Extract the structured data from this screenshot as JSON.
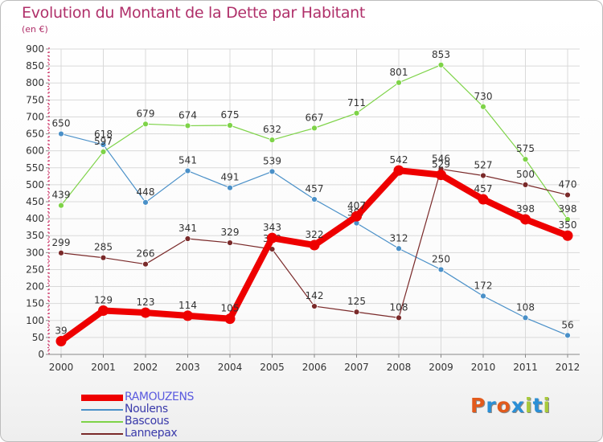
{
  "header": {
    "title": "Evolution du Montant de la Dette par Habitant",
    "subtitle": "(en €)"
  },
  "colors": {
    "title": "#b0306a",
    "axis": "#cc3366",
    "grid": "#d9d9d9"
  },
  "logo": {
    "letters": [
      "P",
      "r",
      "o",
      "x",
      "i",
      "t",
      "i"
    ],
    "colors": [
      "#e25a1c",
      "#2a8fd6",
      "#e25a1c",
      "#2a8fd6",
      "#a8c93a",
      "#2a8fd6",
      "#a8c93a"
    ]
  },
  "chart_data": {
    "type": "line",
    "title": "Evolution du Montant de la Dette par Habitant",
    "subtitle": "(en €)",
    "x": [
      "2000",
      "2001",
      "2002",
      "2003",
      "2004",
      "2005",
      "2006",
      "2007",
      "2008",
      "2009",
      "2010",
      "2011",
      "2012"
    ],
    "yticks": [
      "0",
      "50",
      "100",
      "150",
      "200",
      "250",
      "300",
      "350",
      "400",
      "450",
      "500",
      "550",
      "600",
      "650",
      "700",
      "750",
      "800",
      "850",
      "900"
    ],
    "ylim": [
      0,
      900
    ],
    "grid": true,
    "legend_position": "bottom-left",
    "series": [
      {
        "name": "Noulens",
        "color": "#4a90c8",
        "values": [
          650,
          618,
          448,
          541,
          491,
          539,
          457,
          387,
          312,
          250,
          172,
          108,
          56
        ],
        "labels": [
          "650",
          "618",
          "448",
          "541",
          "491",
          "539",
          "457",
          "387",
          "312",
          "250",
          "172",
          "108",
          "56"
        ]
      },
      {
        "name": "Bascous",
        "color": "#7ed348",
        "values": [
          439,
          597,
          679,
          674,
          675,
          632,
          667,
          711,
          801,
          853,
          730,
          575,
          398
        ],
        "labels": [
          "439",
          "597",
          "679",
          "674",
          "675",
          "632",
          "667",
          "711",
          "801",
          "853",
          "730",
          "575",
          "398"
        ]
      },
      {
        "name": "Lannepax",
        "color": "#7a2a2a",
        "values": [
          299,
          285,
          266,
          341,
          329,
          310,
          142,
          125,
          108,
          546,
          527,
          500,
          470
        ],
        "labels": [
          "299",
          "285",
          "266",
          "341",
          "329",
          "310",
          "142",
          "125",
          "108",
          "546",
          "527",
          "500",
          "470"
        ]
      },
      {
        "name": "RAMOUZENS",
        "color": "#ee0000",
        "values": [
          39,
          129,
          123,
          114,
          105,
          343,
          322,
          407,
          542,
          529,
          457,
          398,
          350
        ],
        "labels": [
          "39",
          "129",
          "123",
          "114",
          "105",
          "343",
          "322",
          "407",
          "542",
          "529",
          "457",
          "398",
          "350"
        ]
      }
    ]
  }
}
